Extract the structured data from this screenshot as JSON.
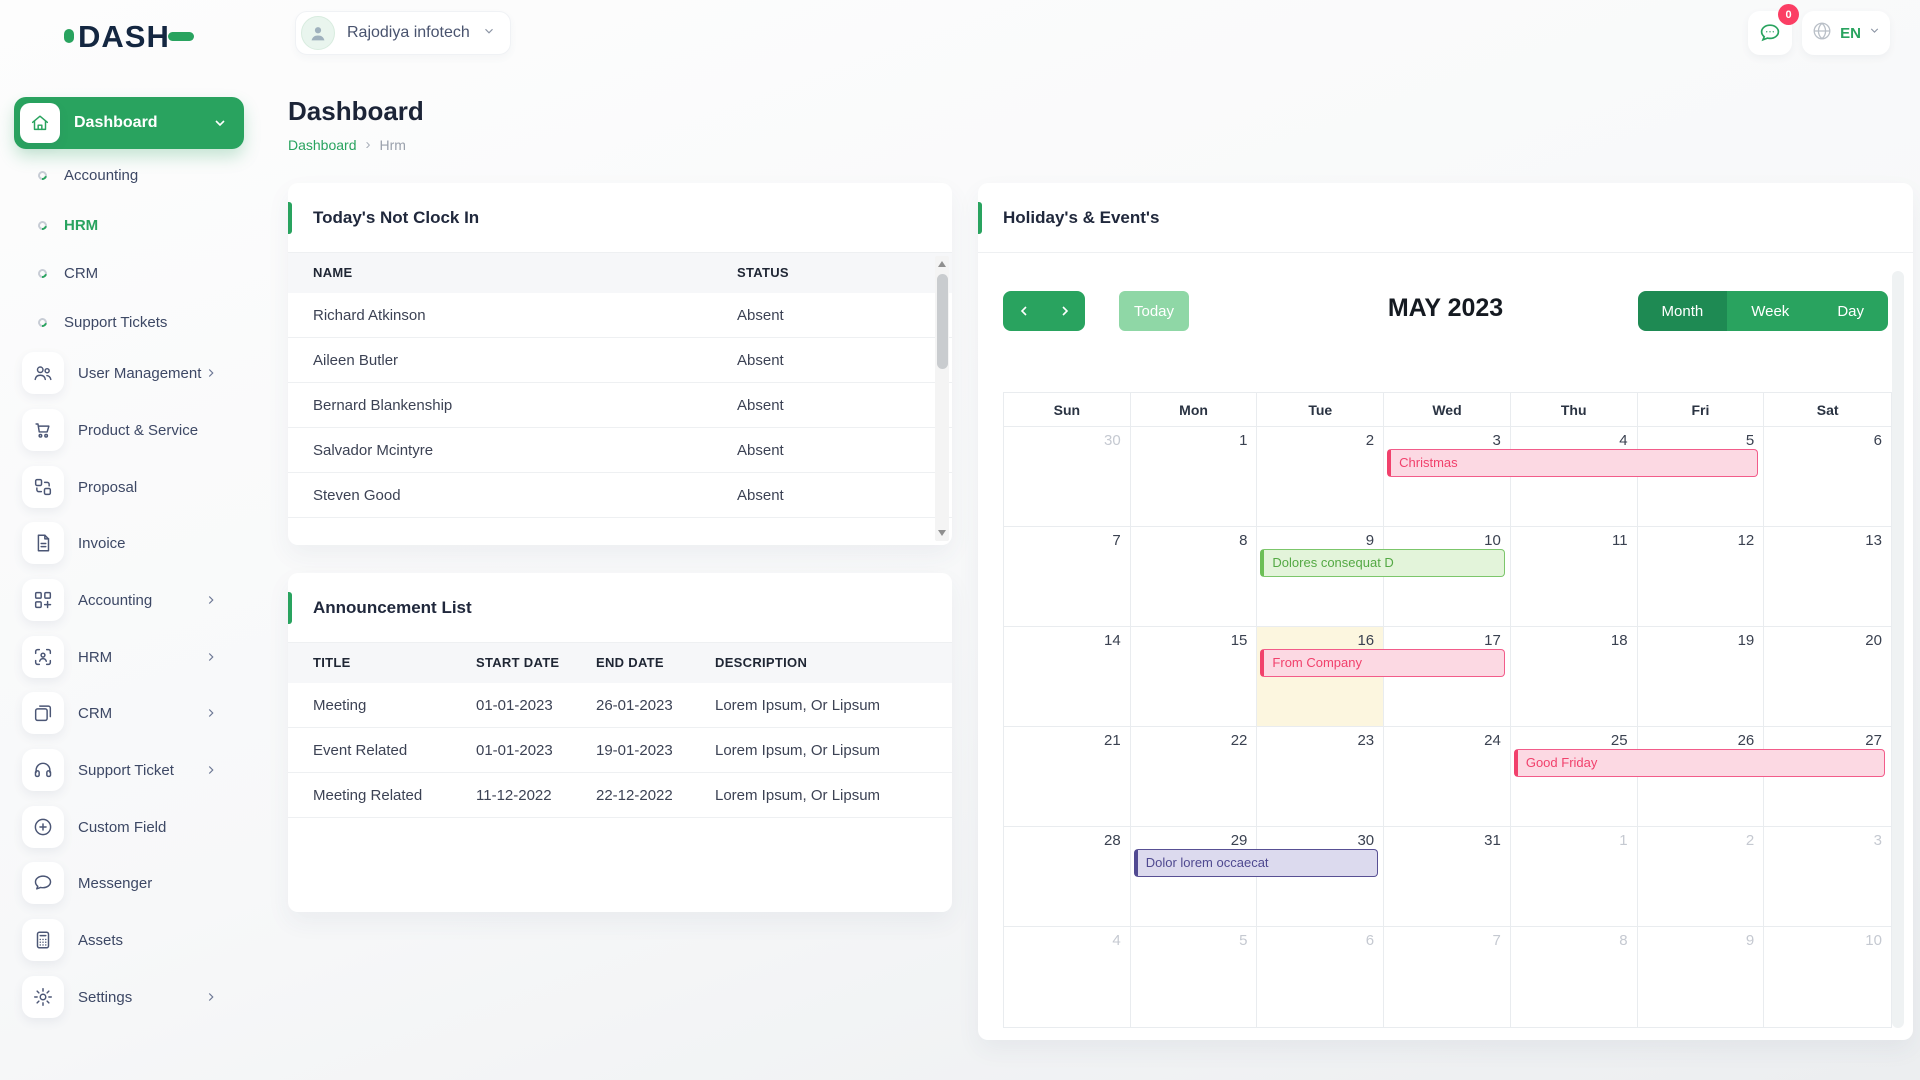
{
  "brand": {
    "logo_text": "DASH"
  },
  "topbar": {
    "company_name": "Rajodiya infotech",
    "messages_badge": "0",
    "language": "EN"
  },
  "sidebar": {
    "items": [
      {
        "label": "Dashboard",
        "icon": "home-icon",
        "type": "active",
        "chevron": "down"
      },
      {
        "label": "Accounting",
        "type": "sub"
      },
      {
        "label": "HRM",
        "type": "sub",
        "active": true
      },
      {
        "label": "CRM",
        "type": "sub"
      },
      {
        "label": "Support Tickets",
        "type": "sub"
      },
      {
        "label": "User Management",
        "icon": "users-icon",
        "type": "item",
        "chevron": "right"
      },
      {
        "label": "Product & Service",
        "icon": "cart-icon",
        "type": "item"
      },
      {
        "label": "Proposal",
        "icon": "proposal-icon",
        "type": "item"
      },
      {
        "label": "Invoice",
        "icon": "invoice-icon",
        "type": "item"
      },
      {
        "label": "Accounting",
        "icon": "accounting-icon",
        "type": "item",
        "chevron": "right"
      },
      {
        "label": "HRM",
        "icon": "hrm-icon",
        "type": "item",
        "chevron": "right"
      },
      {
        "label": "CRM",
        "icon": "crm-icon",
        "type": "item",
        "chevron": "right"
      },
      {
        "label": "Support Ticket",
        "icon": "headset-icon",
        "type": "item",
        "chevron": "right"
      },
      {
        "label": "Custom Field",
        "icon": "plus-circle-icon",
        "type": "item"
      },
      {
        "label": "Messenger",
        "icon": "chat-icon",
        "type": "item"
      },
      {
        "label": "Assets",
        "icon": "calculator-icon",
        "type": "item"
      },
      {
        "label": "Settings",
        "icon": "gear-icon",
        "type": "item",
        "chevron": "right"
      }
    ]
  },
  "page": {
    "title": "Dashboard",
    "breadcrumb": {
      "root": "Dashboard",
      "current": "Hrm"
    }
  },
  "clockin_card": {
    "title": "Today's Not Clock In",
    "columns": [
      "NAME",
      "STATUS"
    ],
    "rows": [
      [
        "Richard Atkinson",
        "Absent"
      ],
      [
        "Aileen Butler",
        "Absent"
      ],
      [
        "Bernard Blankenship",
        "Absent"
      ],
      [
        "Salvador Mcintyre",
        "Absent"
      ],
      [
        "Steven Good",
        "Absent"
      ]
    ]
  },
  "announcement_card": {
    "title": "Announcement List",
    "columns": [
      "TITLE",
      "START DATE",
      "END DATE",
      "DESCRIPTION"
    ],
    "rows": [
      [
        "Meeting",
        "01-01-2023",
        "26-01-2023",
        "Lorem Ipsum, Or Lipsum"
      ],
      [
        "Event Related",
        "01-01-2023",
        "19-01-2023",
        "Lorem Ipsum, Or Lipsum"
      ],
      [
        "Meeting Related",
        "11-12-2022",
        "22-12-2022",
        "Lorem Ipsum, Or Lipsum"
      ]
    ]
  },
  "calendar_card": {
    "title": "Holiday's & Event's",
    "toolbar": {
      "today_label": "Today",
      "month_title": "MAY 2023",
      "views": [
        "Month",
        "Week",
        "Day"
      ],
      "active_view": "Month"
    },
    "day_headers": [
      "Sun",
      "Mon",
      "Tue",
      "Wed",
      "Thu",
      "Fri",
      "Sat"
    ],
    "weeks": [
      [
        {
          "d": 30,
          "muted": true
        },
        {
          "d": 1
        },
        {
          "d": 2
        },
        {
          "d": 3
        },
        {
          "d": 4
        },
        {
          "d": 5
        },
        {
          "d": 6
        }
      ],
      [
        {
          "d": 7
        },
        {
          "d": 8
        },
        {
          "d": 9
        },
        {
          "d": 10
        },
        {
          "d": 11
        },
        {
          "d": 12
        },
        {
          "d": 13
        }
      ],
      [
        {
          "d": 14
        },
        {
          "d": 15
        },
        {
          "d": 16,
          "today": true
        },
        {
          "d": 17
        },
        {
          "d": 18
        },
        {
          "d": 19
        },
        {
          "d": 20
        }
      ],
      [
        {
          "d": 21
        },
        {
          "d": 22
        },
        {
          "d": 23
        },
        {
          "d": 24
        },
        {
          "d": 25
        },
        {
          "d": 26
        },
        {
          "d": 27
        }
      ],
      [
        {
          "d": 28
        },
        {
          "d": 29
        },
        {
          "d": 30
        },
        {
          "d": 31
        },
        {
          "d": 1,
          "muted": true
        },
        {
          "d": 2,
          "muted": true
        },
        {
          "d": 3,
          "muted": true
        }
      ],
      [
        {
          "d": 4,
          "muted": true
        },
        {
          "d": 5,
          "muted": true
        },
        {
          "d": 6,
          "muted": true
        },
        {
          "d": 7,
          "muted": true
        },
        {
          "d": 8,
          "muted": true
        },
        {
          "d": 9,
          "muted": true
        },
        {
          "d": 10,
          "muted": true
        }
      ]
    ],
    "events": [
      {
        "label": "Christmas",
        "week": 1,
        "col": 3,
        "span": 3,
        "color": "pink"
      },
      {
        "label": "Dolores consequat D",
        "week": 2,
        "col": 2,
        "span": 2,
        "color": "green"
      },
      {
        "label": "From Company",
        "week": 3,
        "col": 2,
        "span": 2,
        "color": "pink"
      },
      {
        "label": "Good Friday",
        "week": 4,
        "col": 4,
        "span": 3,
        "color": "pink"
      },
      {
        "label": "Dolor lorem occaecat",
        "week": 5,
        "col": 1,
        "span": 2,
        "color": "purple"
      }
    ]
  },
  "colors": {
    "primary": "#29a35f",
    "primary_dark": "#1e8a53",
    "today_btn": "#8fd7a6",
    "badge": "#fb3e64",
    "sidebar_text": "#3d4865",
    "border": "#eef0f2",
    "grid_border": "#e9ecef",
    "table_head_bg": "#f6f7f9",
    "today_cell": "#fcf6df",
    "event_pink_bg": "#fcd9e3",
    "event_pink_border": "#f25c8a",
    "event_pink_accent": "#f1416c",
    "event_pink_text": "#f1416c",
    "event_green_bg": "#e3f4da",
    "event_green_border": "#7cc66b",
    "event_green_accent": "#6cbf56",
    "event_green_text": "#54a944",
    "event_purple_bg": "#dcdaee",
    "event_purple_border": "#585094",
    "event_purple_accent": "#514a92",
    "event_purple_text": "#4f4990"
  }
}
